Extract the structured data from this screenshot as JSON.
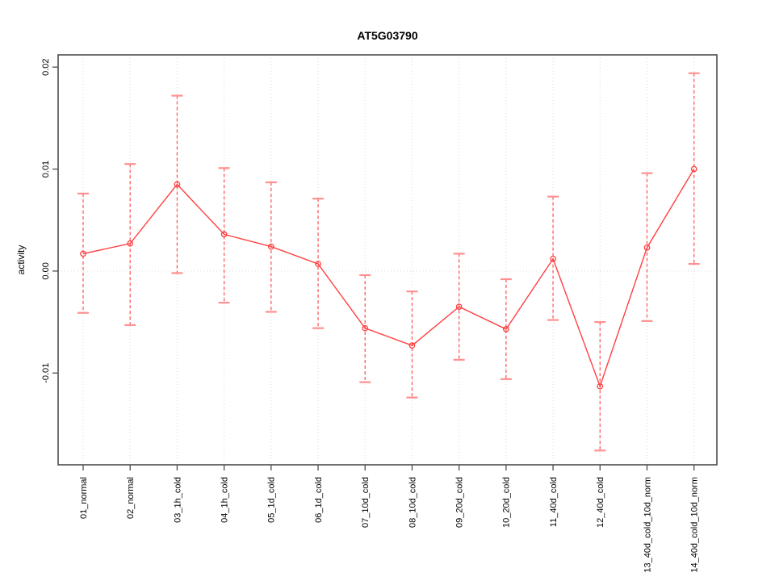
{
  "figure": {
    "title": "AT5G03790"
  },
  "chart_data": {
    "type": "line",
    "title": "AT5G03790",
    "xlabel": "",
    "ylabel": "activity",
    "categories": [
      "01_normal",
      "02_normal",
      "03_1h_cold",
      "04_1h_cold",
      "05_1d_cold",
      "06_1d_cold",
      "07_10d_cold",
      "08_10d_cold",
      "09_20d_cold",
      "10_20d_cold",
      "11_40d_cold",
      "12_40d_cold",
      "13_40d_cold_10d_norm",
      "14_40d_cold_10d_norm"
    ],
    "series": [
      {
        "name": "activity",
        "values": [
          0.0017,
          0.0027,
          0.0085,
          0.0036,
          0.0024,
          0.0007,
          -0.0056,
          -0.0073,
          -0.0035,
          -0.0057,
          0.0012,
          -0.0113,
          0.0023,
          0.01
        ],
        "upper": [
          0.0076,
          0.0105,
          0.0172,
          0.0101,
          0.0087,
          0.0071,
          -0.0004,
          -0.002,
          0.0017,
          -0.0008,
          0.0073,
          -0.005,
          0.0096,
          0.0194
        ],
        "lower": [
          -0.0041,
          -0.0053,
          -0.0002,
          -0.0031,
          -0.004,
          -0.0056,
          -0.0109,
          -0.0124,
          -0.0087,
          -0.0106,
          -0.0048,
          -0.0176,
          -0.0049,
          0.0007
        ]
      }
    ],
    "ylim": [
      -0.019,
      0.0212
    ],
    "yticks": [
      -0.01,
      0,
      0.01,
      0.02
    ],
    "ytick_labels": [
      "-0.01",
      "0.00",
      "0.01",
      "0.02"
    ],
    "grid": {
      "vertical_dotted": true,
      "zero_line_dotted": true,
      "horizontal_other": false
    },
    "legend": "none",
    "colors": {
      "line": "#ff4040",
      "point": "#ff4040",
      "error_stem": "#ff5c5c",
      "error_cap": "#ff9090",
      "grid": "#d9d9d9",
      "axis": "#4d4d4d",
      "text": "#000000",
      "background": "#ffffff"
    }
  }
}
